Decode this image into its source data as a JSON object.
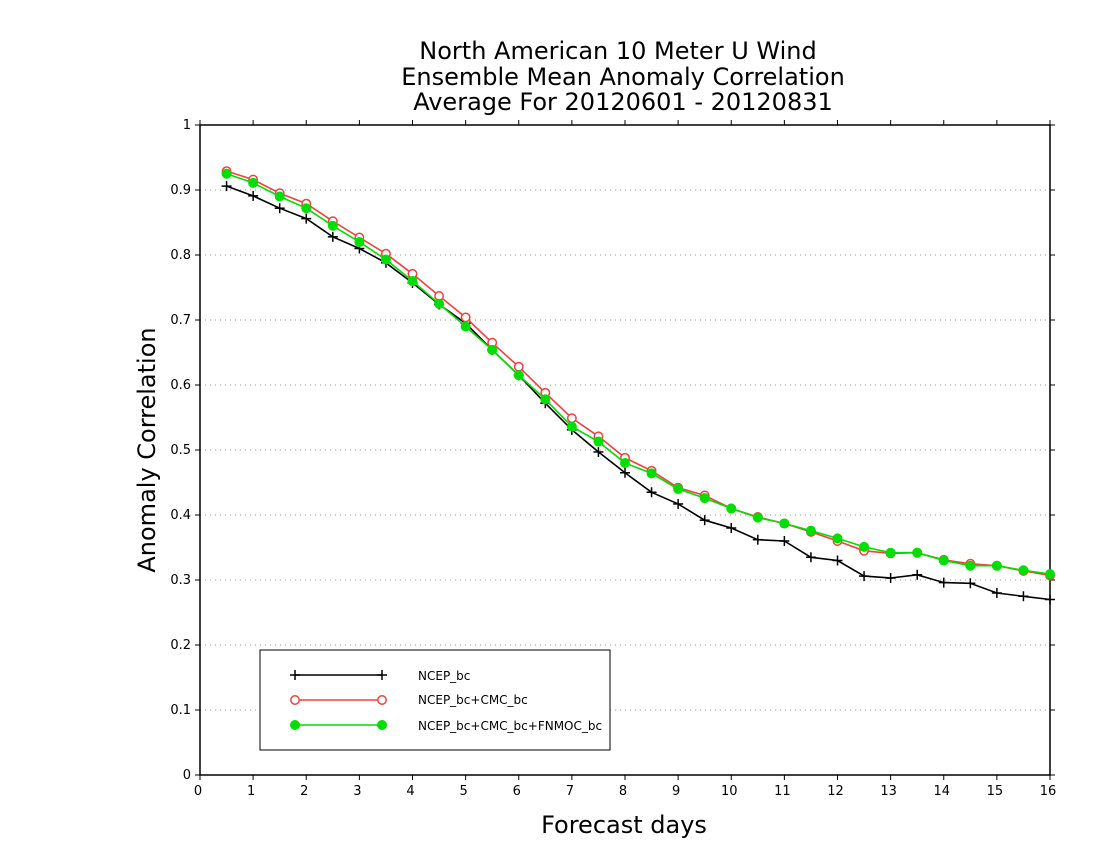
{
  "chart_data": {
    "type": "line",
    "title": [
      "North American 10 Meter U Wind",
      "Ensemble Mean Anomaly Correlation",
      "Average For 20120601 - 20120831"
    ],
    "xlabel": "Forecast days",
    "ylabel": "Anomaly Correlation",
    "xlim": [
      0,
      16
    ],
    "ylim": [
      0,
      1
    ],
    "xticks": [
      0,
      1,
      2,
      3,
      4,
      5,
      6,
      7,
      8,
      9,
      10,
      11,
      12,
      13,
      14,
      15,
      16
    ],
    "yticks": [
      0,
      0.1,
      0.2,
      0.3,
      0.4,
      0.5,
      0.6,
      0.7,
      0.8,
      0.9,
      1
    ],
    "grid": "horizontal dotted",
    "legend_position": "bottom-left",
    "x": [
      0.5,
      1,
      1.5,
      2,
      2.5,
      3,
      3.5,
      4,
      4.5,
      5,
      5.5,
      6,
      6.5,
      7,
      7.5,
      8,
      8.5,
      9,
      9.5,
      10,
      10.5,
      11,
      11.5,
      12,
      12.5,
      13,
      13.5,
      14,
      14.5,
      15,
      15.5,
      16
    ],
    "series": [
      {
        "name": "NCEP_bc",
        "color": "#000000",
        "marker": "plus",
        "values": [
          0.906,
          0.891,
          0.872,
          0.856,
          0.828,
          0.81,
          0.788,
          0.757,
          0.724,
          0.695,
          0.654,
          0.615,
          0.572,
          0.531,
          0.497,
          0.465,
          0.435,
          0.417,
          0.392,
          0.38,
          0.362,
          0.36,
          0.335,
          0.33,
          0.306,
          0.303,
          0.308,
          0.296,
          0.295,
          0.28,
          0.275,
          0.27
        ]
      },
      {
        "name": "NCEP_bc+CMC_bc",
        "color": "#f04040",
        "marker": "open-circle",
        "values": [
          0.929,
          0.916,
          0.895,
          0.879,
          0.852,
          0.827,
          0.802,
          0.771,
          0.737,
          0.704,
          0.665,
          0.628,
          0.588,
          0.549,
          0.521,
          0.488,
          0.468,
          0.442,
          0.43,
          0.41,
          0.397,
          0.387,
          0.374,
          0.36,
          0.345,
          0.341,
          0.342,
          0.331,
          0.325,
          0.322,
          0.314,
          0.307
        ]
      },
      {
        "name": "NCEP_bc+CMC_bc+FNMOC_bc",
        "color": "#00dd00",
        "marker": "filled-circle",
        "values": [
          0.925,
          0.911,
          0.89,
          0.872,
          0.845,
          0.82,
          0.793,
          0.76,
          0.725,
          0.69,
          0.654,
          0.615,
          0.578,
          0.536,
          0.513,
          0.48,
          0.464,
          0.44,
          0.426,
          0.41,
          0.396,
          0.387,
          0.376,
          0.364,
          0.351,
          0.342,
          0.342,
          0.33,
          0.322,
          0.322,
          0.315,
          0.309
        ]
      }
    ]
  }
}
